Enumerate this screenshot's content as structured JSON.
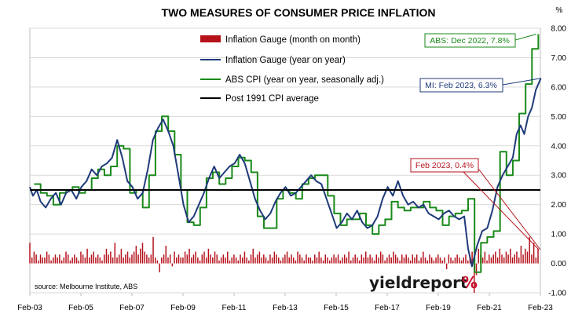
{
  "chart_data": {
    "type": "line",
    "title": "TWO MEASURES OF CONSUMER PRICE INFLATION",
    "y_unit": "%",
    "ylim": [
      -1.0,
      8.0
    ],
    "y_ticks": [
      "-1.00",
      "0.00",
      "1.00",
      "2.00",
      "3.00",
      "4.00",
      "5.00",
      "6.00",
      "7.00",
      "8.00"
    ],
    "x_ticks": [
      "Feb-03",
      "Feb-05",
      "Feb-07",
      "Feb-09",
      "Feb-11",
      "Feb-13",
      "Feb-15",
      "Feb-17",
      "Feb-19",
      "Feb-21",
      "Feb-23"
    ],
    "legend": [
      "Inflation Gauge (month on month)",
      "Inflation Gauge (year on year)",
      "ABS CPI (year on year, seasonally adj.)",
      "Post 1991 CPI average"
    ],
    "series": [
      {
        "name": "ABS CPI (year on year, seasonally adj.)",
        "color": "#1a8a1a",
        "kind": "step",
        "points": [
          [
            2003.25,
            2.7
          ],
          [
            2003.5,
            2.4
          ],
          [
            2003.75,
            2.3
          ],
          [
            2004.0,
            2.0
          ],
          [
            2004.25,
            2.4
          ],
          [
            2004.5,
            2.5
          ],
          [
            2004.75,
            2.6
          ],
          [
            2005.0,
            2.4
          ],
          [
            2005.25,
            2.5
          ],
          [
            2005.5,
            2.9
          ],
          [
            2005.75,
            3.2
          ],
          [
            2006.0,
            3.0
          ],
          [
            2006.25,
            3.3
          ],
          [
            2006.5,
            4.0
          ],
          [
            2006.75,
            3.9
          ],
          [
            2007.0,
            2.4
          ],
          [
            2007.25,
            2.5
          ],
          [
            2007.5,
            1.9
          ],
          [
            2007.75,
            3.0
          ],
          [
            2008.0,
            4.5
          ],
          [
            2008.25,
            5.0
          ],
          [
            2008.5,
            4.5
          ],
          [
            2008.75,
            3.7
          ],
          [
            2009.0,
            2.5
          ],
          [
            2009.25,
            1.4
          ],
          [
            2009.5,
            1.3
          ],
          [
            2009.75,
            1.9
          ],
          [
            2010.0,
            2.9
          ],
          [
            2010.25,
            3.1
          ],
          [
            2010.5,
            2.7
          ],
          [
            2010.75,
            2.9
          ],
          [
            2011.0,
            3.3
          ],
          [
            2011.25,
            3.6
          ],
          [
            2011.5,
            3.5
          ],
          [
            2011.75,
            3.1
          ],
          [
            2012.0,
            1.6
          ],
          [
            2012.25,
            1.2
          ],
          [
            2012.5,
            1.2
          ],
          [
            2012.75,
            2.2
          ],
          [
            2013.0,
            2.5
          ],
          [
            2013.25,
            2.4
          ],
          [
            2013.5,
            2.2
          ],
          [
            2013.75,
            2.7
          ],
          [
            2014.0,
            2.9
          ],
          [
            2014.25,
            3.0
          ],
          [
            2014.5,
            3.0
          ],
          [
            2014.75,
            2.3
          ],
          [
            2015.0,
            1.7
          ],
          [
            2015.25,
            1.3
          ],
          [
            2015.5,
            1.5
          ],
          [
            2015.75,
            1.5
          ],
          [
            2016.0,
            1.7
          ],
          [
            2016.25,
            1.3
          ],
          [
            2016.5,
            1.0
          ],
          [
            2016.75,
            1.3
          ],
          [
            2017.0,
            1.5
          ],
          [
            2017.25,
            2.1
          ],
          [
            2017.5,
            1.9
          ],
          [
            2017.75,
            1.8
          ],
          [
            2018.0,
            1.9
          ],
          [
            2018.25,
            1.9
          ],
          [
            2018.5,
            2.1
          ],
          [
            2018.75,
            1.9
          ],
          [
            2019.0,
            1.8
          ],
          [
            2019.25,
            1.3
          ],
          [
            2019.5,
            1.6
          ],
          [
            2019.75,
            1.7
          ],
          [
            2020.0,
            1.8
          ],
          [
            2020.25,
            2.2
          ],
          [
            2020.5,
            -0.3
          ],
          [
            2020.75,
            0.7
          ],
          [
            2021.0,
            0.9
          ],
          [
            2021.25,
            1.1
          ],
          [
            2021.5,
            3.8
          ],
          [
            2021.75,
            3.0
          ],
          [
            2022.0,
            3.5
          ],
          [
            2022.25,
            5.1
          ],
          [
            2022.5,
            6.1
          ],
          [
            2022.75,
            7.3
          ],
          [
            2023.0,
            7.8
          ]
        ]
      },
      {
        "name": "Inflation Gauge (year on year)",
        "color": "#1f3a7a",
        "kind": "line",
        "points": [
          [
            2003.08,
            2.6
          ],
          [
            2003.2,
            2.3
          ],
          [
            2003.35,
            2.5
          ],
          [
            2003.5,
            2.1
          ],
          [
            2003.7,
            1.9
          ],
          [
            2003.9,
            2.2
          ],
          [
            2004.1,
            2.4
          ],
          [
            2004.3,
            2.0
          ],
          [
            2004.5,
            2.4
          ],
          [
            2004.7,
            2.5
          ],
          [
            2004.9,
            2.2
          ],
          [
            2005.1,
            2.6
          ],
          [
            2005.3,
            2.8
          ],
          [
            2005.5,
            3.2
          ],
          [
            2005.7,
            3.0
          ],
          [
            2005.9,
            3.3
          ],
          [
            2006.1,
            3.4
          ],
          [
            2006.3,
            3.6
          ],
          [
            2006.5,
            4.2
          ],
          [
            2006.7,
            3.6
          ],
          [
            2006.9,
            2.8
          ],
          [
            2007.1,
            2.6
          ],
          [
            2007.3,
            2.2
          ],
          [
            2007.5,
            2.4
          ],
          [
            2007.7,
            3.2
          ],
          [
            2007.9,
            4.2
          ],
          [
            2008.1,
            4.6
          ],
          [
            2008.3,
            4.9
          ],
          [
            2008.5,
            4.5
          ],
          [
            2008.7,
            4.0
          ],
          [
            2008.9,
            3.0
          ],
          [
            2009.1,
            2.0
          ],
          [
            2009.3,
            1.4
          ],
          [
            2009.5,
            1.6
          ],
          [
            2009.7,
            2.0
          ],
          [
            2009.9,
            2.4
          ],
          [
            2010.1,
            2.9
          ],
          [
            2010.3,
            3.3
          ],
          [
            2010.5,
            2.9
          ],
          [
            2010.7,
            3.1
          ],
          [
            2010.9,
            3.3
          ],
          [
            2011.1,
            3.4
          ],
          [
            2011.3,
            3.7
          ],
          [
            2011.5,
            3.4
          ],
          [
            2011.7,
            2.8
          ],
          [
            2011.9,
            2.2
          ],
          [
            2012.1,
            1.8
          ],
          [
            2012.3,
            1.5
          ],
          [
            2012.5,
            1.7
          ],
          [
            2012.7,
            2.1
          ],
          [
            2012.9,
            2.4
          ],
          [
            2013.1,
            2.6
          ],
          [
            2013.3,
            2.3
          ],
          [
            2013.5,
            2.4
          ],
          [
            2013.7,
            2.6
          ],
          [
            2013.9,
            2.8
          ],
          [
            2014.1,
            3.0
          ],
          [
            2014.3,
            2.8
          ],
          [
            2014.5,
            2.7
          ],
          [
            2014.7,
            2.2
          ],
          [
            2014.9,
            1.7
          ],
          [
            2015.1,
            1.2
          ],
          [
            2015.3,
            1.4
          ],
          [
            2015.5,
            1.7
          ],
          [
            2015.7,
            1.5
          ],
          [
            2015.9,
            1.8
          ],
          [
            2016.1,
            1.4
          ],
          [
            2016.3,
            1.2
          ],
          [
            2016.5,
            1.3
          ],
          [
            2016.7,
            1.6
          ],
          [
            2016.9,
            2.2
          ],
          [
            2017.1,
            2.6
          ],
          [
            2017.3,
            2.3
          ],
          [
            2017.5,
            2.8
          ],
          [
            2017.7,
            2.3
          ],
          [
            2017.9,
            2.0
          ],
          [
            2018.1,
            2.1
          ],
          [
            2018.3,
            1.9
          ],
          [
            2018.5,
            2.0
          ],
          [
            2018.7,
            1.7
          ],
          [
            2018.9,
            1.6
          ],
          [
            2019.1,
            1.5
          ],
          [
            2019.3,
            1.7
          ],
          [
            2019.5,
            1.8
          ],
          [
            2019.7,
            1.6
          ],
          [
            2019.9,
            1.5
          ],
          [
            2020.1,
            1.6
          ],
          [
            2020.25,
            0.5
          ],
          [
            2020.4,
            -0.1
          ],
          [
            2020.6,
            0.6
          ],
          [
            2020.8,
            1.1
          ],
          [
            2021.0,
            1.2
          ],
          [
            2021.2,
            1.8
          ],
          [
            2021.4,
            2.6
          ],
          [
            2021.6,
            3.0
          ],
          [
            2021.8,
            3.3
          ],
          [
            2022.0,
            3.6
          ],
          [
            2022.15,
            4.4
          ],
          [
            2022.3,
            4.7
          ],
          [
            2022.45,
            4.4
          ],
          [
            2022.6,
            5.0
          ],
          [
            2022.75,
            5.3
          ],
          [
            2022.9,
            5.9
          ],
          [
            2023.0,
            6.1
          ],
          [
            2023.1,
            6.3
          ]
        ]
      },
      {
        "name": "Post 1991 CPI average",
        "color": "#000000",
        "kind": "hline",
        "value": 2.5
      }
    ],
    "bars": {
      "name": "Inflation Gauge (month on month)",
      "color": "#b5121b",
      "x_start": 2003.0,
      "step": 0.0833,
      "values": [
        0.7,
        0.2,
        0.4,
        0.3,
        0.1,
        0.3,
        0.2,
        0.2,
        0.4,
        0.3,
        0.1,
        0.2,
        0.3,
        0.2,
        0.3,
        0.1,
        0.2,
        0.4,
        0.3,
        0.1,
        0.2,
        0.3,
        0.2,
        0.1,
        0.4,
        0.3,
        0.2,
        0.5,
        0.2,
        0.3,
        0.4,
        0.2,
        0.3,
        0.2,
        0.1,
        0.3,
        0.5,
        0.3,
        0.4,
        0.2,
        0.7,
        0.2,
        0.3,
        0.5,
        0.2,
        0.3,
        0.4,
        0.2,
        0.3,
        0.4,
        0.6,
        0.3,
        0.5,
        0.7,
        0.4,
        0.3,
        0.2,
        0.3,
        0.9,
        0.2,
        0.1,
        -0.3,
        0.2,
        0.3,
        0.6,
        0.2,
        0.3,
        -0.1,
        0.4,
        0.2,
        0.3,
        0.2,
        0.2,
        0.4,
        0.3,
        0.5,
        0.2,
        0.3,
        0.4,
        0.2,
        0.1,
        0.3,
        0.4,
        0.2,
        0.5,
        0.3,
        0.2,
        0.4,
        0.3,
        0.1,
        0.2,
        0.3,
        0.2,
        0.4,
        0.1,
        0.2,
        0.3,
        0.2,
        0.1,
        0.3,
        0.2,
        0.4,
        0.2,
        0.1,
        0.3,
        0.5,
        0.2,
        0.3,
        0.4,
        0.2,
        0.3,
        0.2,
        0.1,
        0.3,
        0.2,
        0.4,
        0.3,
        0.2,
        0.1,
        0.2,
        0.3,
        0.4,
        0.2,
        0.3,
        0.2,
        0.1,
        0.4,
        0.3,
        0.2,
        0.1,
        0.3,
        0.2,
        0.2,
        0.1,
        0.3,
        0.2,
        0.4,
        0.2,
        0.1,
        0.3,
        0.2,
        0.1,
        0.2,
        0.3,
        0.2,
        0.3,
        0.1,
        0.2,
        0.3,
        0.2,
        0.4,
        0.1,
        0.2,
        0.3,
        0.2,
        0.1,
        0.3,
        0.2,
        0.4,
        0.2,
        0.3,
        0.2,
        0.1,
        0.3,
        0.2,
        0.4,
        0.3,
        0.1,
        0.2,
        0.3,
        0.2,
        0.4,
        0.3,
        0.2,
        0.1,
        0.3,
        0.2,
        0.3,
        0.2,
        0.1,
        0.3,
        0.2,
        0.3,
        0.1,
        0.2,
        0.4,
        0.2,
        0.1,
        0.3,
        0.2,
        0.1,
        0.2,
        0.3,
        0.2,
        0.1,
        0.2,
        -0.2,
        0.3,
        0.2,
        0.1,
        0.2,
        0.3,
        0.2,
        0.1,
        0.2,
        0.3,
        0.1,
        0.2,
        0.4,
        -1.0,
        -0.4,
        0.5,
        0.3,
        0.2,
        0.4,
        0.1,
        0.3,
        0.2,
        0.3,
        0.4,
        0.2,
        0.5,
        0.3,
        0.2,
        0.4,
        0.3,
        0.5,
        0.2,
        0.3,
        0.4,
        0.2,
        0.6,
        0.3,
        0.5,
        0.4,
        0.9,
        0.3,
        0.7,
        0.2,
        0.5,
        1.1,
        -0.5,
        0.8,
        0.4,
        0.9,
        0.4
      ]
    },
    "annotations": [
      {
        "text": "ABS: Dec 2022, 7.8%",
        "color": "#1a8a1a",
        "x": 2022.92,
        "y": 7.8
      },
      {
        "text": "MI: Feb 2023, 6.3%",
        "color": "#1f3a7a",
        "x": 2023.1,
        "y": 6.3
      },
      {
        "text": "Feb 2023, 0.4%",
        "color": "#b5121b",
        "x": 2023.1,
        "y": 0.4
      }
    ],
    "source": "source: Melbourne Institute, ABS",
    "logo": {
      "word": "yieldreport",
      "symbol": "%"
    }
  }
}
